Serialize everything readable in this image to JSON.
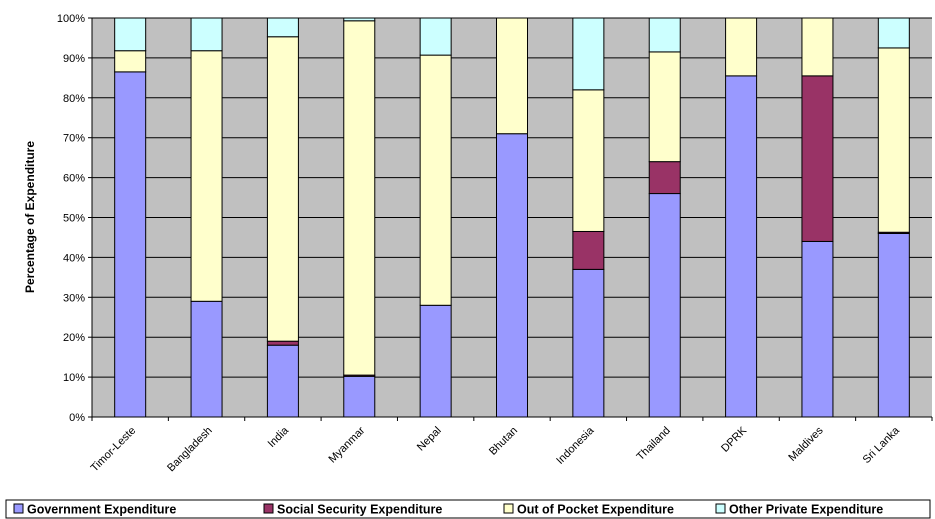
{
  "chart_data": {
    "type": "bar",
    "stacked": true,
    "ylabel": "Percentage of Expenditure",
    "xlabel": "",
    "ylim": [
      0,
      100
    ],
    "yticks": [
      "0%",
      "10%",
      "20%",
      "30%",
      "40%",
      "50%",
      "60%",
      "70%",
      "80%",
      "90%",
      "100%"
    ],
    "categories": [
      "Timor-Leste",
      "Bangladesh",
      "India",
      "Myanmar",
      "Nepal",
      "Bhutan",
      "Indonesia",
      "Thailand",
      "DPRK",
      "Maldives",
      "Sri Lanka"
    ],
    "series": [
      {
        "name": "Government Expenditure",
        "color": "#9999ff",
        "values": [
          86.5,
          29.0,
          18.0,
          10.2,
          28.0,
          71.0,
          37.0,
          56.0,
          85.5,
          44.0,
          46.0
        ]
      },
      {
        "name": "Social Security Expenditure",
        "color": "#993366",
        "values": [
          0,
          0,
          1.0,
          0.3,
          0,
          0,
          9.5,
          8.0,
          0,
          41.5,
          0.3
        ]
      },
      {
        "name": "Out of Pocket Expenditure",
        "color": "#ffffcc",
        "values": [
          5.3,
          62.8,
          76.3,
          88.8,
          62.7,
          29.0,
          35.5,
          27.5,
          14.5,
          14.5,
          46.2
        ]
      },
      {
        "name": "Other Private Expenditure",
        "color": "#ccffff",
        "values": [
          8.2,
          8.2,
          4.7,
          0.7,
          9.3,
          0,
          18.0,
          8.5,
          0,
          0,
          7.5
        ]
      }
    ],
    "grid": true,
    "plot_background": "#c0c0c0",
    "legend_position": "bottom"
  }
}
